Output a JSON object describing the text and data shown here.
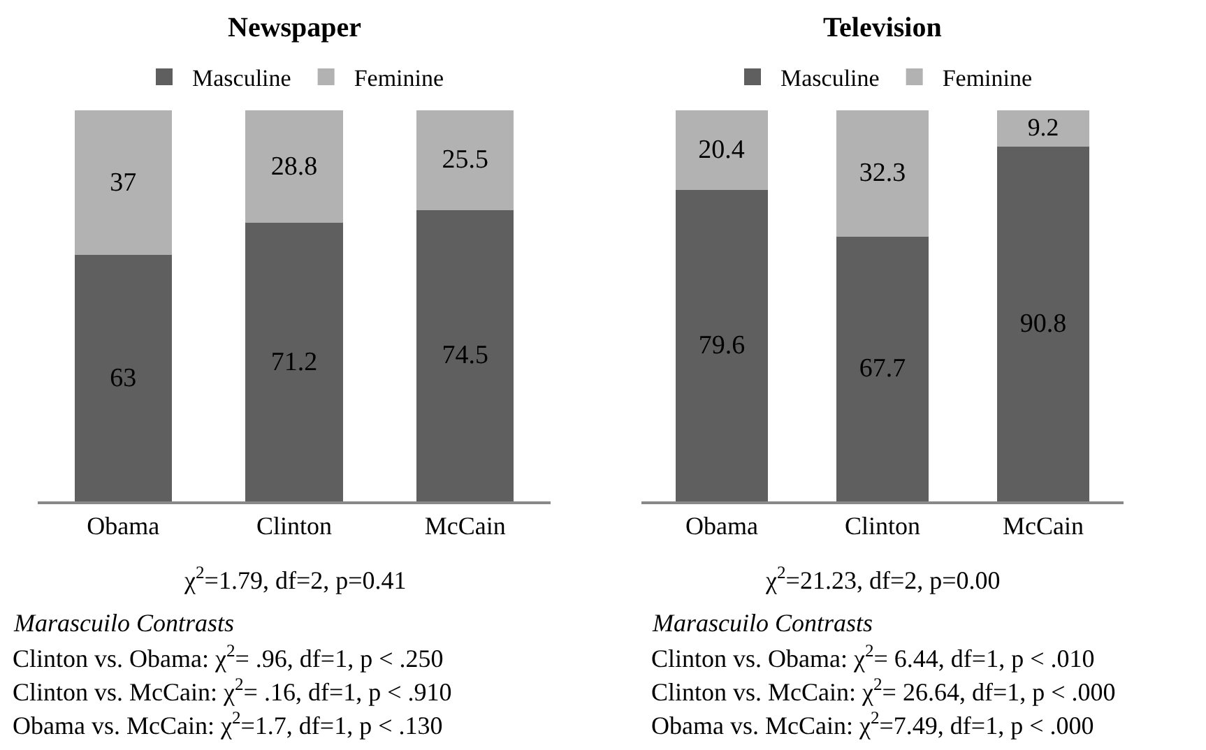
{
  "chart_data": [
    {
      "type": "bar",
      "title": "Newspaper",
      "stacked": true,
      "data_labels": true,
      "legend": "top",
      "tick_labels": "x",
      "ylim": [
        0,
        100
      ],
      "categories": [
        "Obama",
        "Clinton",
        "McCain"
      ],
      "series": [
        {
          "name": "Masculine",
          "color": "#5f5f5f",
          "values": [
            63,
            71.2,
            74.5
          ]
        },
        {
          "name": "Feminine",
          "color": "#b2b2b2",
          "values": [
            37,
            28.8,
            25.5
          ]
        }
      ],
      "annotations": [
        "χ$^{2}$=1.79, df=2, p=0.41",
        "Marascuilo Contrasts",
        "Clinton vs. Obama: χ$^{2}$= .96, df=1, p < .250",
        "Clinton vs. McCain: χ$^{2}$= .16, df=1, p < .910",
        "Obama vs. McCain: χ$^{2}$=1.7, df=1, p < .130"
      ]
    },
    {
      "type": "bar",
      "title": "Television",
      "stacked": true,
      "data_labels": true,
      "legend": "top",
      "tick_labels": "x",
      "ylim": [
        0,
        100
      ],
      "categories": [
        "Obama",
        "Clinton",
        "McCain"
      ],
      "series": [
        {
          "name": "Masculine",
          "color": "#5f5f5f",
          "values": [
            79.6,
            67.7,
            90.8
          ]
        },
        {
          "name": "Feminine",
          "color": "#b2b2b2",
          "values": [
            20.4,
            32.3,
            9.2
          ]
        }
      ],
      "annotations": [
        "χ$^{2}$=21.23, df=2, p=0.00",
        "Marascuilo Contrasts",
        "Clinton vs. Obama: χ$^{2}$= 6.44, df=1, p < .010",
        "Clinton vs. McCain: χ$^{2}$= 26.64, df=1, p < .000",
        "Obama vs. McCain: χ$^{2}$=7.49, df=1, p < .000"
      ]
    }
  ]
}
